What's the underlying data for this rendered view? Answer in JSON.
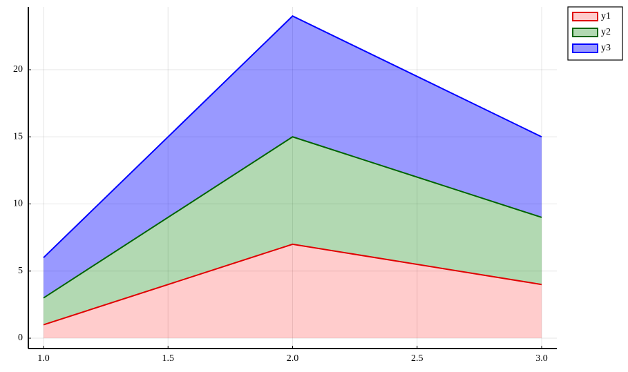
{
  "chart_data": {
    "type": "stacked-area",
    "x": [
      1,
      2,
      3
    ],
    "series": [
      {
        "name": "y1",
        "color": "#e00000",
        "fill": "rgba(255,0,0,0.2)",
        "values": [
          1,
          7,
          4
        ]
      },
      {
        "name": "y2",
        "color": "#006400",
        "fill": "rgba(0,128,0,0.3)",
        "values": [
          2,
          8,
          5
        ]
      },
      {
        "name": "y3",
        "color": "#0000ff",
        "fill": "rgba(0,0,255,0.4)",
        "values": [
          3,
          9,
          6
        ]
      }
    ],
    "xlim": [
      0.939,
      3.061
    ],
    "xticks": [
      {
        "value": 1,
        "label": "1.0"
      },
      {
        "value": 1.5,
        "label": "1.5"
      },
      {
        "value": 2,
        "label": "2.0"
      },
      {
        "value": 2.5,
        "label": "2.5"
      },
      {
        "value": 3,
        "label": "3.0"
      }
    ],
    "ylim": [
      -0.77,
      24.68
    ],
    "yticks": [
      0,
      5,
      10,
      15,
      20
    ],
    "grid": true,
    "legend": "top-right"
  }
}
